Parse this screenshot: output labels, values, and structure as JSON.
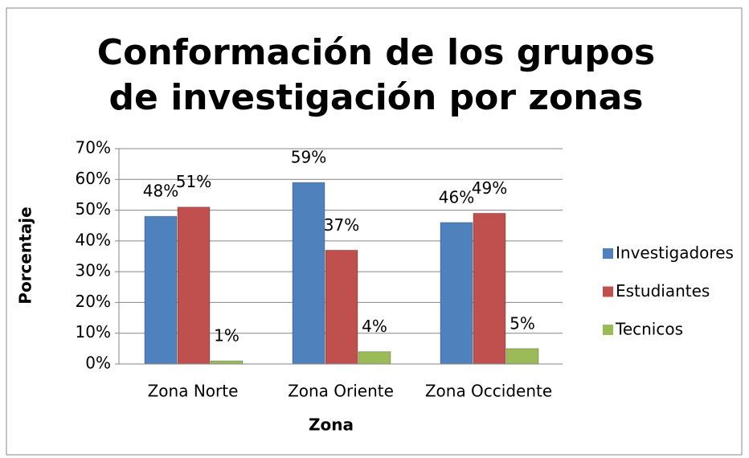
{
  "chart_data": {
    "type": "bar",
    "title": "Conformación de los grupos de investigación por zonas",
    "xlabel": "Zona",
    "ylabel": "Porcentaje",
    "categories": [
      "Zona Norte",
      "Zona Oriente",
      "Zona Occidente"
    ],
    "series": [
      {
        "name": "Investigadores",
        "color": "#4f81bd",
        "values": [
          48,
          59,
          46
        ],
        "value_labels": [
          "48%",
          "59%",
          "46%"
        ]
      },
      {
        "name": "Estudiantes",
        "color": "#c0504d",
        "values": [
          51,
          37,
          49
        ],
        "value_labels": [
          "51%",
          "37%",
          "49%"
        ]
      },
      {
        "name": "Tecnicos",
        "color": "#9bbb59",
        "values": [
          1,
          4,
          5
        ],
        "value_labels": [
          "1%",
          "4%",
          "5%"
        ]
      }
    ],
    "ylim": [
      0,
      70
    ],
    "yticks": [
      {
        "value": 0,
        "label": "0%"
      },
      {
        "value": 10,
        "label": "10%"
      },
      {
        "value": 20,
        "label": "20%"
      },
      {
        "value": 30,
        "label": "30%"
      },
      {
        "value": 40,
        "label": "40%"
      },
      {
        "value": 50,
        "label": "50%"
      },
      {
        "value": 60,
        "label": "60%"
      },
      {
        "value": 70,
        "label": "70%"
      }
    ],
    "grid": true,
    "legend": "right"
  }
}
